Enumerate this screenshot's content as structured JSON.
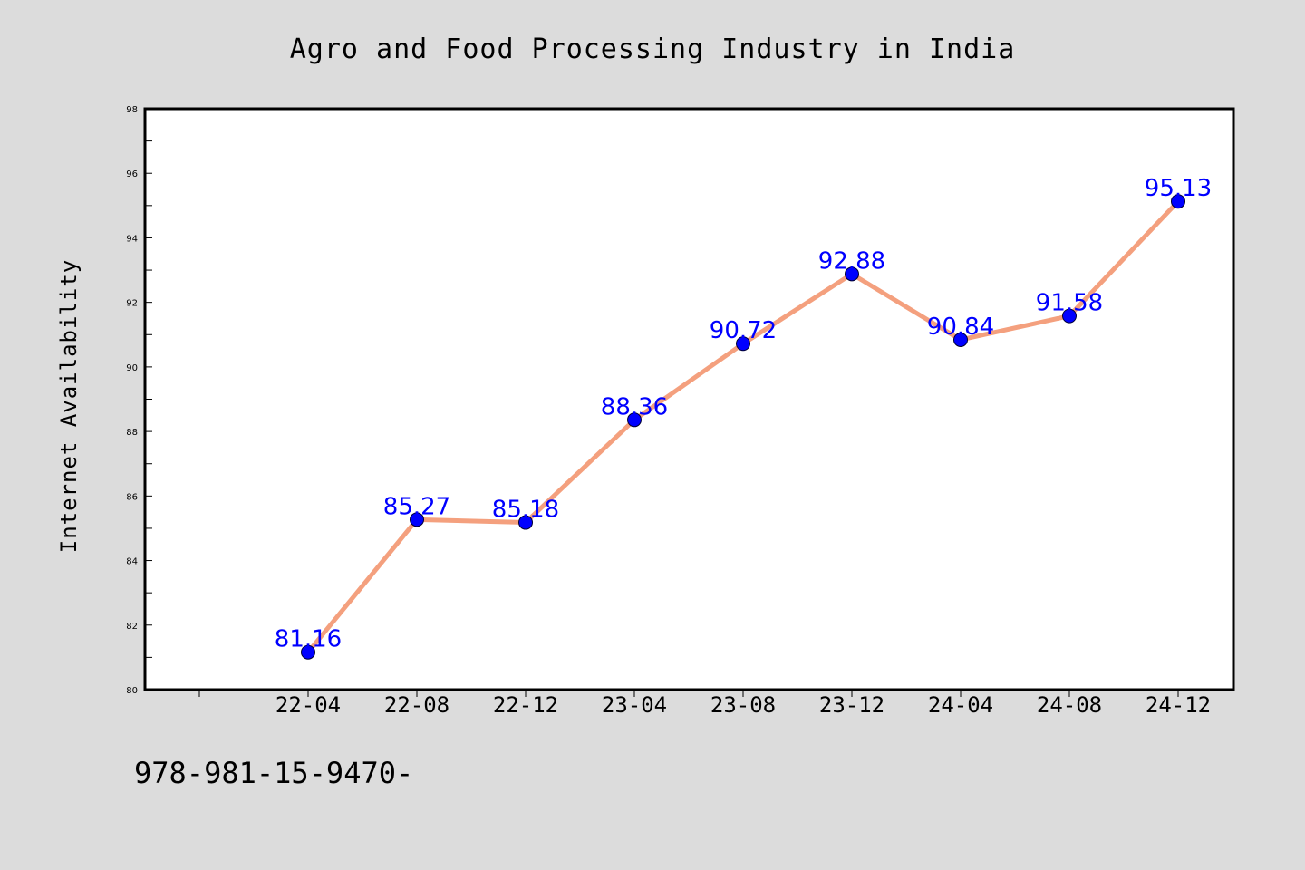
{
  "footer_text": "978-981-15-9470-",
  "colors": {
    "background": "#dcdcdc",
    "plot_background": "#ffffff",
    "line": "#f4a07e",
    "marker": "#0000ff",
    "data_label": "#0000ff"
  },
  "chart_data": {
    "type": "line",
    "title": "Agro and Food Processing Industry in India",
    "xlabel": "",
    "ylabel": "Internet Availability",
    "categories": [
      "22-04",
      "22-08",
      "22-12",
      "23-04",
      "23-08",
      "23-12",
      "24-04",
      "24-08",
      "24-12"
    ],
    "series": [
      {
        "values": [
          81.16,
          85.27,
          85.18,
          88.36,
          90.72,
          92.88,
          90.84,
          91.58,
          95.13
        ]
      }
    ],
    "ylim": [
      80,
      98
    ],
    "yticks": [
      80,
      82,
      84,
      86,
      88,
      90,
      92,
      94,
      96,
      98
    ],
    "grid": false,
    "legend": "none",
    "data_labels": true
  }
}
